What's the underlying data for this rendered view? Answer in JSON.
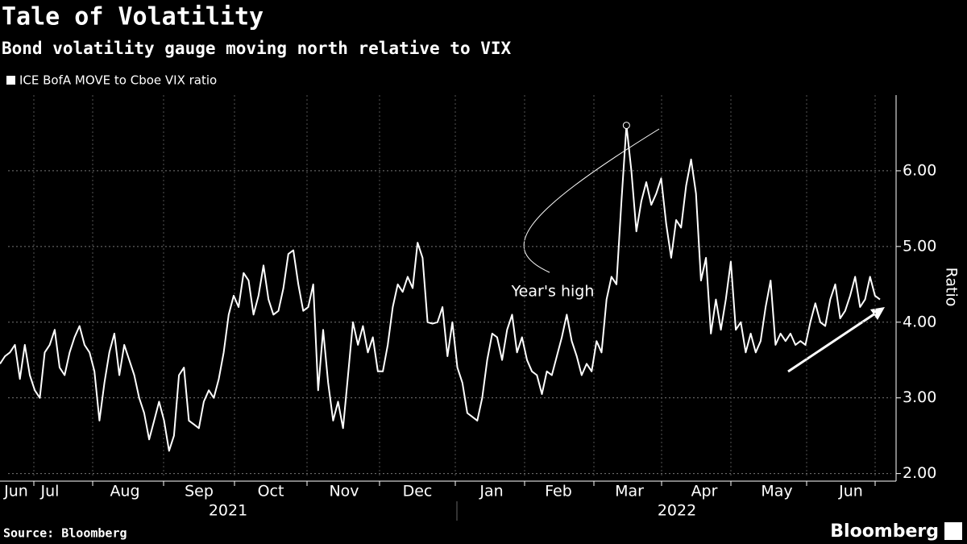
{
  "chart_data": {
    "type": "line",
    "title": "Tale of Volatility",
    "subtitle": "Bond volatility gauge moving north relative to VIX",
    "y_label": "Ratio",
    "annotation": "Year's high",
    "source": "Source: Bloomberg",
    "brand": "Bloomberg",
    "xticks": [
      "Jun",
      "Jul",
      "Aug",
      "Sep",
      "Oct",
      "Nov",
      "Dec",
      "Jan",
      "Feb",
      "Mar",
      "Apr",
      "May",
      "Jun"
    ],
    "years": [
      "2021",
      "2022"
    ],
    "ylim": [
      1.9,
      7.0
    ],
    "yticks": [
      {
        "value": 2,
        "label": "2.00"
      },
      {
        "value": 3,
        "label": "3.00"
      },
      {
        "value": 4,
        "label": "4.00"
      },
      {
        "value": 5,
        "label": "5.00"
      },
      {
        "value": 6,
        "label": "6.00"
      }
    ],
    "grid": true,
    "series": [
      {
        "name": "ICE BofA MOVE to Cboe VIX ratio",
        "color": "#ffffff",
        "values": [
          3.45,
          3.55,
          3.6,
          3.7,
          3.25,
          3.7,
          3.3,
          3.1,
          3.0,
          3.6,
          3.7,
          3.9,
          3.4,
          3.3,
          3.6,
          3.8,
          3.95,
          3.7,
          3.6,
          3.35,
          2.7,
          3.2,
          3.6,
          3.85,
          3.3,
          3.7,
          3.5,
          3.3,
          3.0,
          2.8,
          2.45,
          2.7,
          2.95,
          2.7,
          2.3,
          2.5,
          3.3,
          3.4,
          2.7,
          2.65,
          2.6,
          2.95,
          3.1,
          3.0,
          3.25,
          3.6,
          4.1,
          4.35,
          4.2,
          4.65,
          4.55,
          4.1,
          4.35,
          4.75,
          4.3,
          4.1,
          4.15,
          4.45,
          4.9,
          4.95,
          4.5,
          4.15,
          4.2,
          4.5,
          3.1,
          3.9,
          3.2,
          2.7,
          2.95,
          2.6,
          3.3,
          4.0,
          3.7,
          3.95,
          3.6,
          3.8,
          3.35,
          3.35,
          3.7,
          4.2,
          4.5,
          4.4,
          4.6,
          4.45,
          5.05,
          4.85,
          4.0,
          3.98,
          4.0,
          4.2,
          3.55,
          4.0,
          3.4,
          3.2,
          2.8,
          2.75,
          2.7,
          3.0,
          3.5,
          3.85,
          3.8,
          3.5,
          3.9,
          4.1,
          3.6,
          3.8,
          3.5,
          3.35,
          3.3,
          3.05,
          3.35,
          3.3,
          3.55,
          3.8,
          4.1,
          3.75,
          3.55,
          3.3,
          3.45,
          3.35,
          3.75,
          3.6,
          4.3,
          4.6,
          4.5,
          5.6,
          6.6,
          6.0,
          5.2,
          5.6,
          5.85,
          5.55,
          5.7,
          5.9,
          5.3,
          4.85,
          5.35,
          5.25,
          5.8,
          6.15,
          5.7,
          4.55,
          4.85,
          3.85,
          4.3,
          3.9,
          4.3,
          4.8,
          3.9,
          4.0,
          3.6,
          3.85,
          3.6,
          3.75,
          4.2,
          4.55,
          3.7,
          3.85,
          3.75,
          3.85,
          3.7,
          3.75,
          3.7,
          4.0,
          4.25,
          4.0,
          3.95,
          4.3,
          4.5,
          4.05,
          4.15,
          4.35,
          4.6,
          4.2,
          4.3,
          4.6,
          4.35,
          4.3
        ]
      }
    ]
  }
}
